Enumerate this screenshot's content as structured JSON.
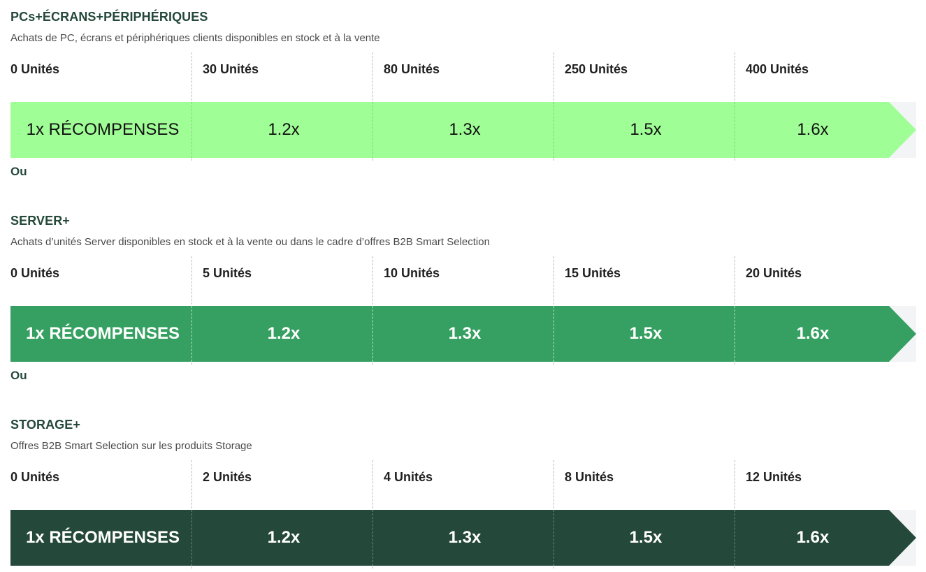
{
  "sections": [
    {
      "title": "PCs+ÉCRANS+PÉRIPHÉRIQUES",
      "subtitle": "Achats de PC, écrans et périphériques clients disponibles en stock et à la vente",
      "tiers": [
        "0 Unités",
        "30 Unités",
        "80 Unités",
        "250 Unités",
        "400 Unités"
      ],
      "rewards": [
        "1x RÉCOMPENSES",
        "1.2x",
        "1.3x",
        "1.5x",
        "1.6x"
      ],
      "band_color": "#a0fe96",
      "text_color": "#111111"
    },
    {
      "title": "SERVER+",
      "subtitle": "Achats d’unités Server disponibles en stock et à la vente ou dans le cadre d’offres B2B Smart Selection",
      "tiers": [
        "0 Unités",
        "5 Unités",
        "10 Unités",
        "15 Unités",
        "20 Unités"
      ],
      "rewards": [
        "1x RÉCOMPENSES",
        "1.2x",
        "1.3x",
        "1.5x",
        "1.6x"
      ],
      "band_color": "#35a061",
      "text_color": "#ffffff"
    },
    {
      "title": "STORAGE+",
      "subtitle": "Offres B2B Smart Selection sur les produits Storage",
      "tiers": [
        "0 Unités",
        "2 Unités",
        "4 Unités",
        "8 Unités",
        "12 Unités"
      ],
      "rewards": [
        "1x RÉCOMPENSES",
        "1.2x",
        "1.3x",
        "1.5x",
        "1.6x"
      ],
      "band_color": "#244839",
      "text_color": "#ffffff"
    }
  ],
  "separator_label": "Ou",
  "colors": {
    "heading": "#24483a",
    "band_tail_bg": "#f2f4f5"
  }
}
